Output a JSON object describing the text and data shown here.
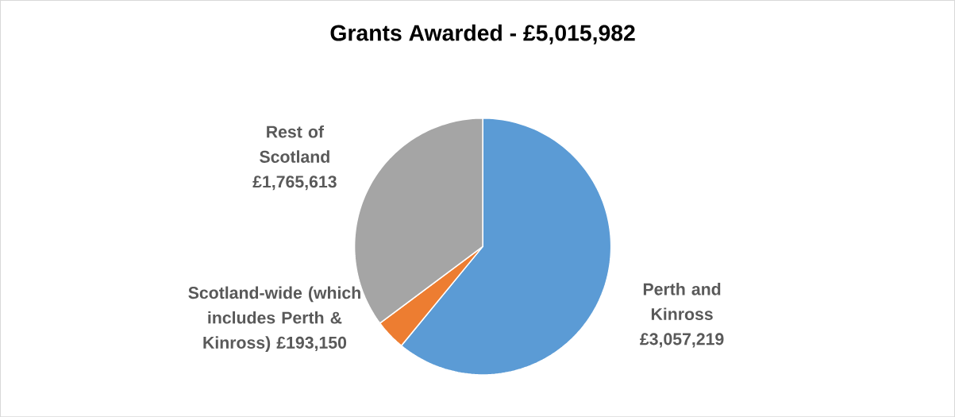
{
  "chart_data": {
    "type": "pie",
    "title": "Grants Awarded - £5,015,982",
    "categories": [
      "Perth and Kinross",
      "Scotland-wide (which includes Perth & Kinross)",
      "Rest of Scotland"
    ],
    "values": [
      3057219,
      193150,
      1765613
    ],
    "colors": [
      "#5b9bd5",
      "#ed7d31",
      "#a5a5a5"
    ],
    "value_labels": [
      "£3,057,219",
      "£193,150",
      "£1,765,613"
    ]
  }
}
